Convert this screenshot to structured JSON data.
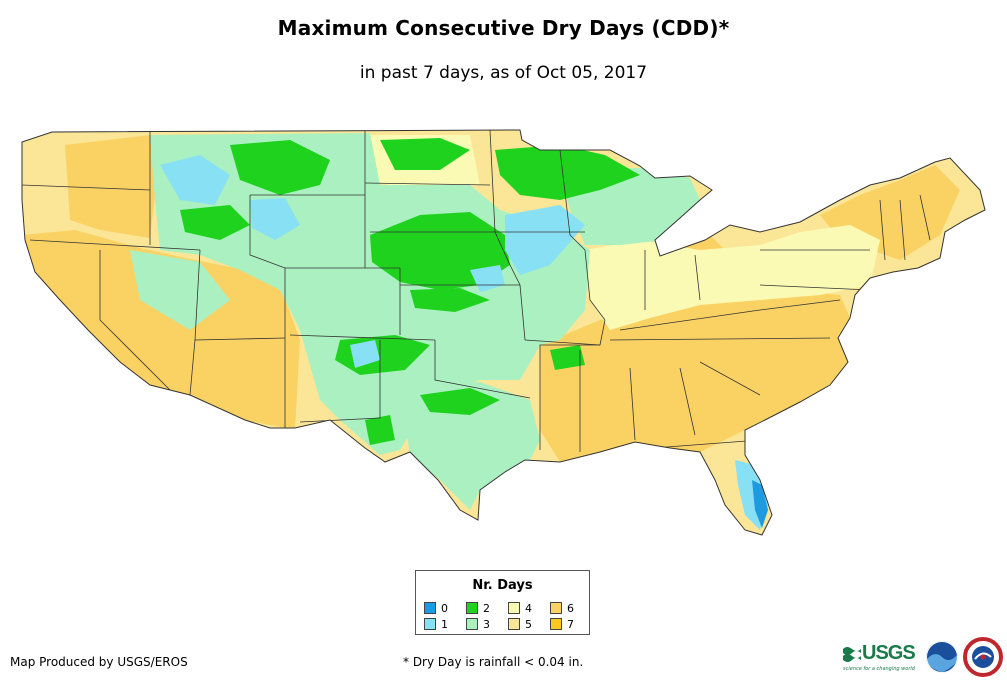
{
  "header": {
    "title": "Maximum Consecutive Dry Days (CDD)*",
    "subtitle": "in past 7 days, as of Oct 05, 2017"
  },
  "legend": {
    "title": "Nr. Days",
    "items": [
      {
        "label": "0",
        "color": "#1e9be0"
      },
      {
        "label": "1",
        "color": "#88e0f5"
      },
      {
        "label": "2",
        "color": "#1ed21e"
      },
      {
        "label": "3",
        "color": "#aaf0c0"
      },
      {
        "label": "4",
        "color": "#fafab4"
      },
      {
        "label": "5",
        "color": "#fae696"
      },
      {
        "label": "6",
        "color": "#fad264"
      },
      {
        "label": "7",
        "color": "#fac81e"
      }
    ]
  },
  "footer": {
    "credit": "Map Produced by USGS/EROS",
    "footnote": "* Dry Day is rainfall < 0.04 in.",
    "logos": [
      "usgs-logo",
      "noaa-logo",
      "nws-logo"
    ],
    "usgs_text": "USGS",
    "usgs_tagline": "science for a changing world"
  }
}
